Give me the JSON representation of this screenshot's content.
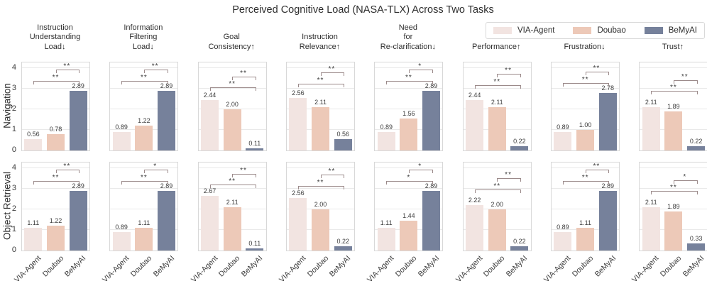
{
  "title": "Perceived Cognitive Load (NASA-TLX) Across Two Tasks",
  "legend": {
    "items": [
      {
        "label": "VIA-Agent",
        "color": "#f2e4e1"
      },
      {
        "label": "Doubao",
        "color": "#edc9b8"
      },
      {
        "label": "BeMyAI",
        "color": "#76819b"
      }
    ]
  },
  "chart_data": {
    "type": "bar",
    "categories": [
      "VIA-Agent",
      "Doubao",
      "BeMyAI"
    ],
    "palette": {
      "VIA-Agent": "#f2e4e1",
      "Doubao": "#edc9b8",
      "BeMyAI": "#76819b"
    },
    "ylim": [
      0,
      4.28
    ],
    "yticks": [
      0,
      1,
      2,
      3,
      4
    ],
    "grid": true,
    "legend_position": "upper right",
    "bracket_color": "#9b8a8a",
    "column_titles": [
      [
        "Instruction",
        "Understanding",
        "Load↓"
      ],
      [
        "Information",
        "Filtering",
        "Load↓"
      ],
      [
        "Goal",
        "Consistency↑"
      ],
      [
        "Instruction",
        "Relevance↑"
      ],
      [
        "Need",
        "for",
        "Re-clarification↓"
      ],
      [
        "Performance↑"
      ],
      [
        "Frustration↓"
      ],
      [
        "Trust↑"
      ]
    ],
    "rows": [
      {
        "label": "Navigation",
        "subplots": [
          {
            "values": [
              0.56,
              0.78,
              2.89
            ],
            "annotations": [
              {
                "pair": [
                  0,
                  2
                ],
                "label": "**",
                "y": 3.34
              },
              {
                "pair": [
                  1,
                  2
                ],
                "label": "**",
                "y": 3.89
              }
            ]
          },
          {
            "values": [
              0.89,
              1.22,
              2.89
            ],
            "annotations": [
              {
                "pair": [
                  0,
                  2
                ],
                "label": "**",
                "y": 3.34
              },
              {
                "pair": [
                  1,
                  2
                ],
                "label": "**",
                "y": 3.89
              }
            ]
          },
          {
            "values": [
              2.44,
              2.0,
              0.11
            ],
            "annotations": [
              {
                "pair": [
                  0,
                  2
                ],
                "label": "**",
                "y": 3.05
              },
              {
                "pair": [
                  1,
                  2
                ],
                "label": "**",
                "y": 3.55
              }
            ]
          },
          {
            "values": [
              2.56,
              2.11,
              0.56
            ],
            "annotations": [
              {
                "pair": [
                  0,
                  2
                ],
                "label": "**",
                "y": 3.2
              },
              {
                "pair": [
                  1,
                  2
                ],
                "label": "**",
                "y": 3.78
              }
            ]
          },
          {
            "values": [
              0.89,
              1.56,
              2.89
            ],
            "annotations": [
              {
                "pair": [
                  0,
                  2
                ],
                "label": "**",
                "y": 3.34
              },
              {
                "pair": [
                  1,
                  2
                ],
                "label": "*",
                "y": 3.89
              }
            ]
          },
          {
            "values": [
              2.44,
              2.11,
              0.22
            ],
            "annotations": [
              {
                "pair": [
                  0,
                  2
                ],
                "label": "**",
                "y": 3.15
              },
              {
                "pair": [
                  1,
                  2
                ],
                "label": "**",
                "y": 3.68
              }
            ]
          },
          {
            "values": [
              0.89,
              1.0,
              2.78
            ],
            "annotations": [
              {
                "pair": [
                  0,
                  2
                ],
                "label": "**",
                "y": 3.25
              },
              {
                "pair": [
                  1,
                  2
                ],
                "label": "**",
                "y": 3.8
              }
            ]
          },
          {
            "values": [
              2.11,
              1.89,
              0.22
            ],
            "annotations": [
              {
                "pair": [
                  0,
                  2
                ],
                "label": "**",
                "y": 2.88
              },
              {
                "pair": [
                  1,
                  2
                ],
                "label": "**",
                "y": 3.38
              }
            ]
          }
        ]
      },
      {
        "label": "Object Retrieval",
        "subplots": [
          {
            "values": [
              1.11,
              1.22,
              2.89
            ],
            "annotations": [
              {
                "pair": [
                  0,
                  2
                ],
                "label": "**",
                "y": 3.34
              },
              {
                "pair": [
                  1,
                  2
                ],
                "label": "**",
                "y": 3.89
              }
            ]
          },
          {
            "values": [
              0.89,
              1.11,
              2.89
            ],
            "annotations": [
              {
                "pair": [
                  0,
                  2
                ],
                "label": "**",
                "y": 3.34
              },
              {
                "pair": [
                  1,
                  2
                ],
                "label": "*",
                "y": 3.89
              }
            ]
          },
          {
            "values": [
              2.67,
              2.11,
              0.11
            ],
            "annotations": [
              {
                "pair": [
                  0,
                  2
                ],
                "label": "**",
                "y": 3.18
              },
              {
                "pair": [
                  1,
                  2
                ],
                "label": "**",
                "y": 3.7
              }
            ]
          },
          {
            "values": [
              2.56,
              2.0,
              0.22
            ],
            "annotations": [
              {
                "pair": [
                  0,
                  2
                ],
                "label": "**",
                "y": 3.12
              },
              {
                "pair": [
                  1,
                  2
                ],
                "label": "**",
                "y": 3.65
              }
            ]
          },
          {
            "values": [
              1.11,
              1.44,
              2.89
            ],
            "annotations": [
              {
                "pair": [
                  0,
                  2
                ],
                "label": "*",
                "y": 3.34
              },
              {
                "pair": [
                  1,
                  2
                ],
                "label": "*",
                "y": 3.89
              }
            ]
          },
          {
            "values": [
              2.22,
              2.0,
              0.22
            ],
            "annotations": [
              {
                "pair": [
                  0,
                  2
                ],
                "label": "**",
                "y": 2.95
              },
              {
                "pair": [
                  1,
                  2
                ],
                "label": "**",
                "y": 3.48
              }
            ]
          },
          {
            "values": [
              0.89,
              1.11,
              2.89
            ],
            "annotations": [
              {
                "pair": [
                  0,
                  2
                ],
                "label": "**",
                "y": 3.34
              },
              {
                "pair": [
                  1,
                  2
                ],
                "label": "**",
                "y": 3.89
              }
            ]
          },
          {
            "values": [
              2.11,
              1.89,
              0.33
            ],
            "annotations": [
              {
                "pair": [
                  0,
                  2
                ],
                "label": "**",
                "y": 2.88
              },
              {
                "pair": [
                  1,
                  2
                ],
                "label": "*",
                "y": 3.38
              }
            ]
          }
        ]
      }
    ]
  }
}
